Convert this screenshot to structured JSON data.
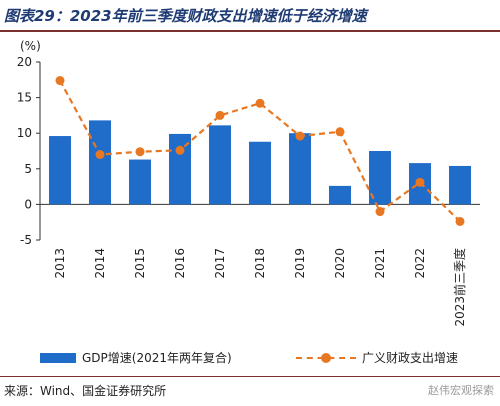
{
  "title": "图表29：2023年前三季度财政支出增速低于经济增速",
  "source": "来源：Wind、国金证券研究所",
  "watermark": "赵伟宏观探索",
  "colors": {
    "bar": "#1f6cc9",
    "line": "#e87722",
    "title": "#1f3b73",
    "rule": "#7a2e2e"
  },
  "chart_data": {
    "type": "bar",
    "unit_label": "(%)",
    "categories": [
      "2013",
      "2014",
      "2015",
      "2016",
      "2017",
      "2018",
      "2019",
      "2020",
      "2021",
      "2022",
      "2023前三季度"
    ],
    "ylim": [
      -5,
      20
    ],
    "yticks": [
      -5,
      0,
      5,
      10,
      15,
      20
    ],
    "legend_position": "bottom",
    "series": [
      {
        "name": "GDP增速(2021年两年复合)",
        "type": "bar",
        "values": [
          9.6,
          11.8,
          6.3,
          9.9,
          11.1,
          8.8,
          10.0,
          2.6,
          7.5,
          5.8,
          5.4
        ]
      },
      {
        "name": "广义财政支出增速",
        "type": "line",
        "style": "dashed-with-markers",
        "values": [
          17.4,
          7.0,
          7.4,
          7.6,
          12.5,
          14.2,
          9.6,
          10.2,
          -1.0,
          3.1,
          -2.4
        ]
      }
    ]
  }
}
